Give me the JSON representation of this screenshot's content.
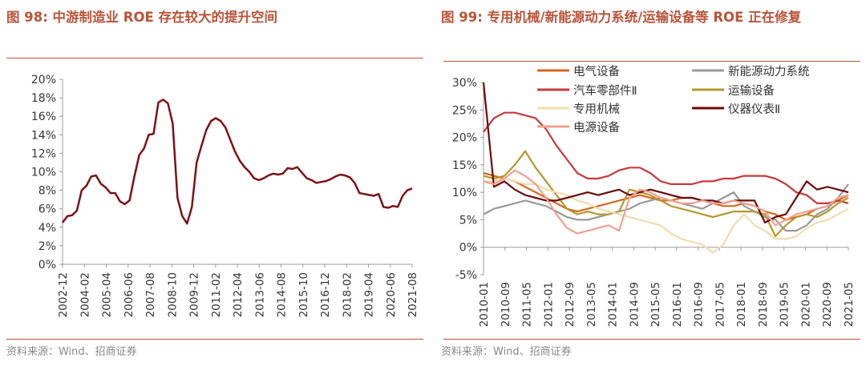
{
  "left": {
    "title": "图 98:  中游制造业 ROE 存在较大的提升空间",
    "source": "资料来源：Wind、招商证券"
  },
  "right": {
    "title": "图 99:  专用机械/新能源动力系统/运输设备等 ROE 正在修复",
    "source": "资料来源：Wind、招商证券"
  },
  "chart_data": [
    {
      "type": "line",
      "title": "中游制造业 ROE 存在较大的提升空间",
      "ylim": [
        0,
        20
      ],
      "yticks": [
        0,
        2,
        4,
        6,
        8,
        10,
        12,
        14,
        16,
        18,
        20
      ],
      "ytick_labels": [
        "0%",
        "2%",
        "4%",
        "6%",
        "8%",
        "10%",
        "12%",
        "14%",
        "16%",
        "18%",
        "20%"
      ],
      "xtick_labels": [
        "2002-12",
        "2004-02",
        "2005-04",
        "2006-06",
        "2007-08",
        "2008-10",
        "2009-12",
        "2011-02",
        "2012-04",
        "2013-06",
        "2014-08",
        "2015-10",
        "2016-12",
        "2018-02",
        "2019-04",
        "2020-06",
        "2021-08"
      ],
      "color": "#7b1216",
      "values": [
        4.5,
        5.2,
        5.3,
        5.8,
        8.0,
        8.5,
        9.5,
        9.6,
        8.7,
        8.3,
        7.7,
        7.7,
        6.8,
        6.5,
        6.9,
        9.5,
        11.8,
        12.5,
        14.0,
        14.1,
        17.5,
        17.8,
        17.4,
        15.2,
        7.2,
        5.2,
        4.4,
        6.2,
        11.0,
        12.8,
        14.5,
        15.5,
        15.8,
        15.5,
        14.8,
        13.5,
        12.2,
        11.2,
        10.5,
        10.0,
        9.3,
        9.1,
        9.3,
        9.6,
        9.8,
        9.7,
        9.8,
        10.4,
        10.3,
        10.5,
        9.9,
        9.3,
        9.1,
        8.8,
        8.9,
        9.0,
        9.2,
        9.5,
        9.7,
        9.6,
        9.4,
        8.8,
        7.7,
        7.6,
        7.5,
        7.4,
        7.6,
        6.2,
        6.1,
        6.3,
        6.2,
        7.4,
        8.0,
        8.2
      ]
    },
    {
      "type": "line",
      "title": "专用机械/新能源动力系统/运输设备等 ROE 正在修复",
      "ylim": [
        -5,
        30
      ],
      "yticks": [
        -5,
        0,
        5,
        10,
        15,
        20,
        25,
        30
      ],
      "ytick_labels": [
        "-5%",
        "0%",
        "5%",
        "10%",
        "15%",
        "20%",
        "25%",
        "30%"
      ],
      "xtick_labels": [
        "2010-01",
        "2010-09",
        "2011-05",
        "2012-01",
        "2012-09",
        "2013-05",
        "2014-01",
        "2014-09",
        "2015-05",
        "2016-01",
        "2016-09",
        "2017-05",
        "2018-01",
        "2018-09",
        "2019-05",
        "2020-01",
        "2020-09",
        "2021-05"
      ],
      "series": [
        {
          "name": "电气设备",
          "color": "#d2691e",
          "values": [
            13.5,
            13.0,
            12.5,
            12.0,
            11.0,
            10.0,
            9.0,
            8.0,
            7.0,
            6.5,
            7.0,
            7.5,
            8.0,
            8.5,
            9.0,
            9.5,
            9.0,
            8.5,
            8.5,
            9.0,
            9.0,
            8.5,
            8.0,
            7.5,
            7.5,
            8.0,
            7.5,
            6.5,
            6.0,
            5.0,
            5.5,
            6.0,
            7.0,
            7.5,
            8.5,
            9.5
          ]
        },
        {
          "name": "新能源动力系统",
          "color": "#999999",
          "values": [
            6.0,
            7.0,
            7.5,
            8.0,
            8.5,
            8.0,
            7.5,
            6.5,
            5.5,
            5.0,
            5.0,
            5.5,
            6.0,
            6.5,
            7.0,
            8.0,
            8.5,
            9.0,
            8.5,
            8.0,
            7.5,
            7.0,
            8.0,
            9.0,
            10.0,
            7.5,
            6.5,
            5.5,
            5.0,
            3.0,
            3.0,
            4.0,
            6.0,
            7.0,
            9.0,
            11.5
          ]
        },
        {
          "name": "汽车零部件Ⅱ",
          "color": "#c53a3a",
          "values": [
            21.0,
            23.5,
            24.5,
            24.5,
            24.0,
            23.5,
            21.5,
            18.5,
            16.0,
            13.5,
            12.5,
            12.5,
            13.0,
            14.0,
            14.5,
            14.5,
            13.5,
            12.0,
            11.5,
            11.5,
            11.5,
            12.0,
            12.0,
            12.5,
            12.5,
            13.0,
            13.0,
            13.0,
            12.5,
            11.5,
            10.0,
            9.5,
            8.0,
            8.0,
            8.5,
            8.0
          ]
        },
        {
          "name": "运输设备",
          "color": "#b5982e",
          "values": [
            13.0,
            12.5,
            13.0,
            15.0,
            17.5,
            14.5,
            12.0,
            9.5,
            7.0,
            6.0,
            6.5,
            6.0,
            6.0,
            6.5,
            10.5,
            10.0,
            9.5,
            8.5,
            7.5,
            7.0,
            6.5,
            6.0,
            5.5,
            6.0,
            6.5,
            6.5,
            6.5,
            6.0,
            2.0,
            4.0,
            5.5,
            6.0,
            5.5,
            6.5,
            8.0,
            9.0
          ]
        },
        {
          "name": "专用机械",
          "color": "#f2dcaf",
          "values": [
            12.0,
            12.0,
            12.5,
            12.0,
            11.5,
            11.5,
            10.5,
            10.0,
            9.5,
            8.5,
            8.0,
            7.0,
            6.5,
            6.0,
            5.5,
            5.0,
            4.5,
            4.0,
            2.5,
            1.5,
            1.0,
            0.5,
            -1.0,
            0.5,
            4.0,
            6.0,
            4.0,
            3.0,
            1.5,
            1.5,
            2.0,
            3.5,
            4.5,
            5.0,
            6.0,
            7.0
          ]
        },
        {
          "name": "仪器仪表Ⅱ",
          "color": "#6b0a0a",
          "values": [
            30.0,
            11.0,
            12.0,
            10.5,
            9.5,
            9.0,
            8.5,
            8.5,
            9.0,
            9.5,
            10.0,
            9.5,
            10.0,
            10.5,
            9.5,
            10.0,
            10.5,
            10.0,
            9.5,
            9.0,
            9.0,
            8.5,
            8.5,
            8.0,
            8.5,
            8.5,
            8.5,
            4.5,
            5.5,
            6.0,
            9.0,
            12.0,
            10.5,
            11.0,
            10.5,
            10.0
          ]
        },
        {
          "name": "电源设备",
          "color": "#f0a090",
          "values": [
            12.0,
            11.5,
            12.5,
            14.0,
            13.0,
            11.5,
            9.0,
            6.0,
            3.5,
            2.5,
            3.0,
            3.5,
            4.0,
            3.0,
            9.0,
            10.5,
            10.0,
            9.0,
            8.5,
            8.0,
            8.0,
            8.5,
            8.0,
            8.0,
            8.5,
            8.0,
            7.5,
            6.5,
            4.0,
            5.0,
            6.0,
            6.5,
            7.0,
            7.5,
            9.0,
            9.5
          ]
        }
      ]
    }
  ]
}
